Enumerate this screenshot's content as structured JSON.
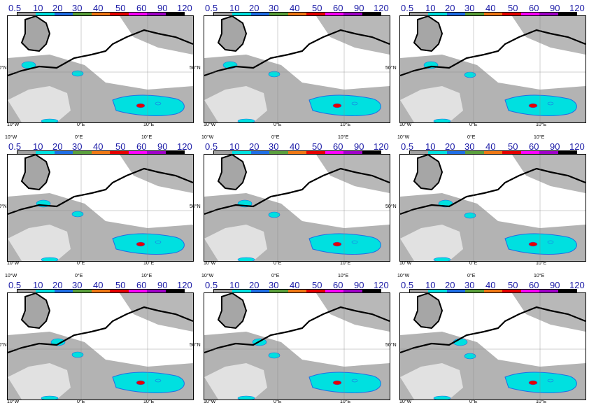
{
  "legend": {
    "values": [
      "0.5",
      "10",
      "20",
      "30",
      "40",
      "50",
      "60",
      "90",
      "120"
    ],
    "colors": [
      "#a0a0a0",
      "#00e0e0",
      "#1e6ee6",
      "#5aa03c",
      "#f07814",
      "#e60000",
      "#ff00ff",
      "#a000c8",
      "#000000"
    ]
  },
  "axis": {
    "lon_labels": [
      "10°W",
      "0°E",
      "10°E"
    ],
    "lat_label": "50°N"
  },
  "panels": [
    {
      "id": "p1"
    },
    {
      "id": "p2"
    },
    {
      "id": "p3"
    },
    {
      "id": "p4"
    },
    {
      "id": "p5"
    },
    {
      "id": "p6"
    },
    {
      "id": "p7"
    },
    {
      "id": "p8"
    },
    {
      "id": "p9"
    }
  ]
}
